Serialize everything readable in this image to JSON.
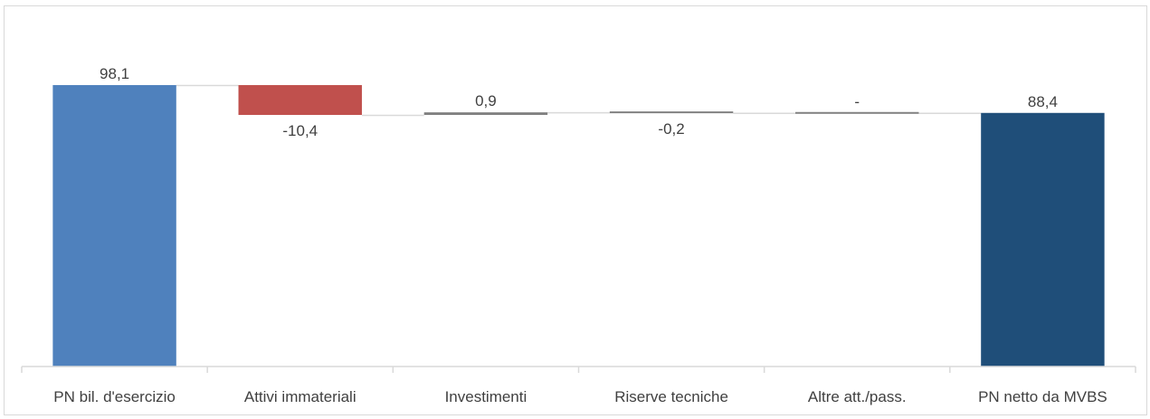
{
  "chart_data": {
    "type": "bar",
    "subtype": "waterfall",
    "title": "",
    "xlabel": "",
    "ylabel": "",
    "categories": [
      "PN  bil. d'esercizio",
      "Attivi immateriali",
      "Investimenti",
      "Riserve tecniche",
      "Altre att./pass.",
      "PN netto da MVBS"
    ],
    "values": [
      98.1,
      -10.4,
      0.9,
      -0.2,
      0,
      88.4
    ],
    "bar_kinds": [
      "total",
      "delta",
      "delta",
      "delta",
      "delta",
      "total"
    ],
    "value_labels": [
      "98,1",
      "-10,4",
      "0,9",
      "-0,2",
      "-",
      "88,4"
    ],
    "ylim": [
      0,
      100
    ],
    "grid": false,
    "legend": "none",
    "colors": {
      "start_total": "#4f81bd",
      "negative": "#c0504d",
      "positive": "#808080",
      "small_negative": "#808080",
      "neutral": "#808080",
      "end_total": "#1f4e79",
      "connector": "#d9d9d9",
      "axis": "#d9d9d9",
      "text": "#404040"
    },
    "bar_colors": [
      "#4f81bd",
      "#c0504d",
      "#808080",
      "#808080",
      "#808080",
      "#1f4e79"
    ]
  }
}
